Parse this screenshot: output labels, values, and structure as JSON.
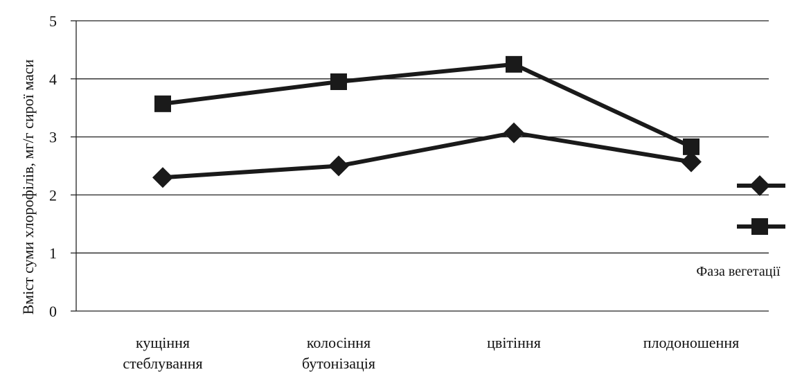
{
  "chart_data": {
    "type": "line",
    "categories": [
      [
        "кущіння",
        "стеблування"
      ],
      [
        "колосіння",
        "бутонізація"
      ],
      [
        "цвітіння"
      ],
      [
        "плодоношення"
      ]
    ],
    "series": [
      {
        "marker": "diamond",
        "values": [
          2.3,
          2.5,
          3.07,
          2.57
        ]
      },
      {
        "marker": "square",
        "values": [
          3.57,
          3.95,
          4.25,
          2.83
        ]
      }
    ],
    "ylabel": "Вміст суми хлорофілів, мг/г сирої маси",
    "xlabel": "Фаза вегетації",
    "ylim": [
      0,
      5
    ],
    "yticks": [
      "0",
      "1",
      "2",
      "3",
      "4",
      "5"
    ],
    "grid": true,
    "legend_position": "right",
    "line_color": "#1a1a1a"
  }
}
